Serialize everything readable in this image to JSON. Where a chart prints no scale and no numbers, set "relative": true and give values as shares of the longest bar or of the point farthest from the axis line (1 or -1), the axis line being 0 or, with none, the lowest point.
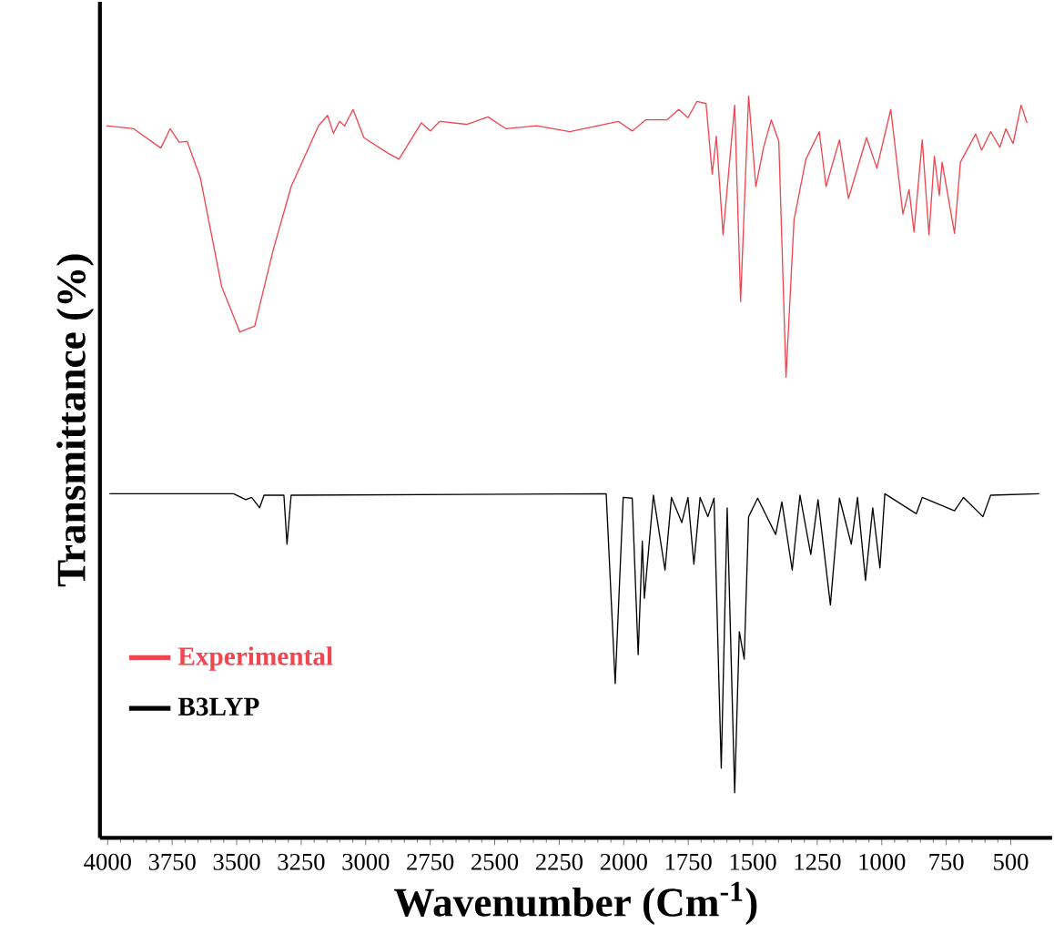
{
  "chart_data": {
    "type": "line",
    "relative": true,
    "xlabel": "Wavenumber (Cm$^{-1}$)",
    "ylabel": "Transmittance (%)",
    "xlim": [
      4030,
      340
    ],
    "xticks": [
      4000,
      3750,
      3500,
      3250,
      3000,
      2750,
      2500,
      2250,
      2000,
      1750,
      1500,
      1250,
      1000,
      750,
      500
    ],
    "legend": "bottom left",
    "grid": false,
    "marker": "none",
    "line_style": "solid",
    "series": [
      {
        "name": "Experimental",
        "color": "#f04650",
        "x": [
          4005,
          3899,
          3794,
          3758,
          3723,
          3692,
          3641,
          3558,
          3488,
          3430,
          3359,
          3289,
          3183,
          3148,
          3125,
          3101,
          3082,
          3049,
          3007,
          2913,
          2871,
          2784,
          2749,
          2713,
          2608,
          2526,
          2456,
          2338,
          2209,
          2021,
          1967,
          1915,
          1833,
          1787,
          1751,
          1716,
          1681,
          1657,
          1641,
          1615,
          1570,
          1547,
          1516,
          1488,
          1458,
          1428,
          1399,
          1371,
          1340,
          1294,
          1242,
          1216,
          1164,
          1129,
          1059,
          1019,
          965,
          918,
          894,
          875,
          843,
          817,
          796,
          777,
          766,
          718,
          695,
          636,
          613,
          578,
          542,
          519,
          491,
          460,
          437
        ],
        "values": [
          0.96,
          0.956,
          0.93,
          0.956,
          0.938,
          0.939,
          0.89,
          0.743,
          0.682,
          0.69,
          0.792,
          0.878,
          0.96,
          0.974,
          0.95,
          0.966,
          0.96,
          0.982,
          0.944,
          0.923,
          0.915,
          0.964,
          0.953,
          0.966,
          0.962,
          0.972,
          0.956,
          0.96,
          0.952,
          0.966,
          0.953,
          0.968,
          0.968,
          0.982,
          0.971,
          0.993,
          0.99,
          0.895,
          0.946,
          0.813,
          0.988,
          0.723,
          1.0,
          0.878,
          0.931,
          0.968,
          0.939,
          0.621,
          0.833,
          0.915,
          0.952,
          0.878,
          0.941,
          0.862,
          0.944,
          0.903,
          0.982,
          0.841,
          0.874,
          0.817,
          0.941,
          0.813,
          0.919,
          0.866,
          0.911,
          0.815,
          0.911,
          0.949,
          0.927,
          0.952,
          0.931,
          0.956,
          0.936,
          0.988,
          0.964
        ]
      },
      {
        "name": "B3LYP",
        "color": "#000000",
        "x": [
          3993,
          3512,
          3465,
          3442,
          3411,
          3394,
          3317,
          3305,
          3289,
          2068,
          2033,
          2002,
          1967,
          1944,
          1928,
          1920,
          1885,
          1840,
          1815,
          1775,
          1751,
          1728,
          1704,
          1674,
          1650,
          1622,
          1599,
          1570,
          1552,
          1533,
          1516,
          1481,
          1411,
          1387,
          1347,
          1317,
          1275,
          1247,
          1199,
          1164,
          1118,
          1094,
          1063,
          1035,
          1007,
          988,
          866,
          843,
          718,
          683,
          608,
          578,
          390
        ],
        "values": [
          0.464,
          0.464,
          0.456,
          0.459,
          0.445,
          0.462,
          0.462,
          0.396,
          0.462,
          0.464,
          0.208,
          0.459,
          0.458,
          0.247,
          0.4,
          0.323,
          0.462,
          0.361,
          0.459,
          0.425,
          0.459,
          0.369,
          0.459,
          0.433,
          0.458,
          0.094,
          0.445,
          0.061,
          0.278,
          0.241,
          0.433,
          0.458,
          0.409,
          0.453,
          0.361,
          0.462,
          0.382,
          0.456,
          0.314,
          0.458,
          0.396,
          0.459,
          0.347,
          0.445,
          0.364,
          0.464,
          0.437,
          0.459,
          0.441,
          0.459,
          0.433,
          0.462,
          0.464
        ]
      }
    ]
  }
}
